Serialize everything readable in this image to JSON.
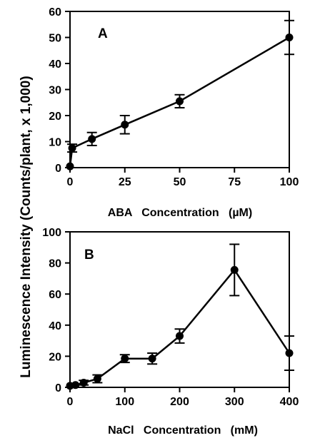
{
  "ylabel": "Luminescence Intensity (Counts/plant, x 1,000)",
  "chart_data": [
    {
      "type": "line",
      "panel_label": "A",
      "xlabel": "ABA   Concentration   (µM)",
      "xlim": [
        0,
        100
      ],
      "ylim": [
        0,
        60
      ],
      "xticks": [
        "0",
        "25",
        "50",
        "75",
        "100"
      ],
      "yticks": [
        "0",
        "10",
        "20",
        "30",
        "40",
        "50",
        "60"
      ],
      "x": [
        0,
        1,
        10,
        25,
        50,
        100
      ],
      "y": [
        0.5,
        7.5,
        11,
        16.5,
        25.5,
        50
      ],
      "err": [
        0,
        1.5,
        2.5,
        3.5,
        2.5,
        6.5
      ],
      "grid": false
    },
    {
      "type": "line",
      "panel_label": "B",
      "xlabel": "NaCl   Concentration   (mM)",
      "xlim": [
        0,
        400
      ],
      "ylim": [
        0,
        100
      ],
      "xticks": [
        "0",
        "100",
        "200",
        "300",
        "400"
      ],
      "yticks": [
        "0",
        "20",
        "40",
        "60",
        "80",
        "100"
      ],
      "x": [
        0,
        10,
        25,
        50,
        100,
        150,
        200,
        300,
        400
      ],
      "y": [
        1,
        1.5,
        3,
        5.5,
        18.5,
        18.5,
        33,
        75.5,
        22
      ],
      "err": [
        0,
        0,
        1.5,
        2.5,
        2.5,
        3.5,
        4.5,
        16.5,
        11
      ],
      "grid": false
    }
  ]
}
